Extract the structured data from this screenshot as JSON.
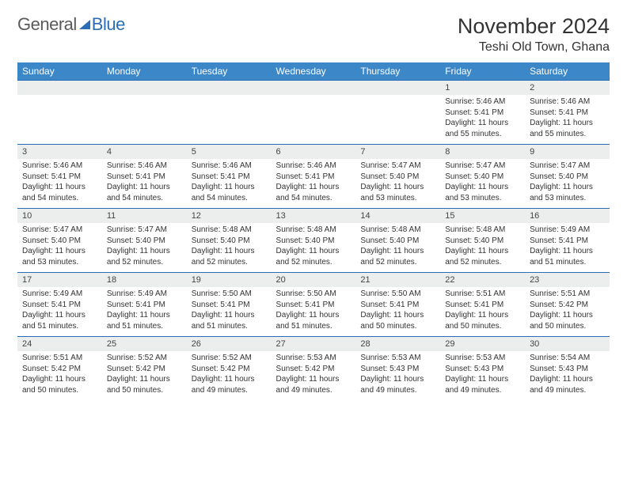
{
  "logo": {
    "text1": "General",
    "text2": "Blue"
  },
  "title": "November 2024",
  "location": "Teshi Old Town, Ghana",
  "colors": {
    "header_bg": "#3b87c8",
    "header_text": "#ffffff",
    "rule": "#2a6db5",
    "daynum_bg": "#eceded",
    "logo_gray": "#5a5a5a",
    "logo_blue": "#2a6db5",
    "text": "#333333",
    "background": "#ffffff"
  },
  "day_headers": [
    "Sunday",
    "Monday",
    "Tuesday",
    "Wednesday",
    "Thursday",
    "Friday",
    "Saturday"
  ],
  "weeks": [
    [
      {
        "n": "",
        "sr": "",
        "ss": "",
        "dl": ""
      },
      {
        "n": "",
        "sr": "",
        "ss": "",
        "dl": ""
      },
      {
        "n": "",
        "sr": "",
        "ss": "",
        "dl": ""
      },
      {
        "n": "",
        "sr": "",
        "ss": "",
        "dl": ""
      },
      {
        "n": "",
        "sr": "",
        "ss": "",
        "dl": ""
      },
      {
        "n": "1",
        "sr": "Sunrise: 5:46 AM",
        "ss": "Sunset: 5:41 PM",
        "dl": "Daylight: 11 hours and 55 minutes."
      },
      {
        "n": "2",
        "sr": "Sunrise: 5:46 AM",
        "ss": "Sunset: 5:41 PM",
        "dl": "Daylight: 11 hours and 55 minutes."
      }
    ],
    [
      {
        "n": "3",
        "sr": "Sunrise: 5:46 AM",
        "ss": "Sunset: 5:41 PM",
        "dl": "Daylight: 11 hours and 54 minutes."
      },
      {
        "n": "4",
        "sr": "Sunrise: 5:46 AM",
        "ss": "Sunset: 5:41 PM",
        "dl": "Daylight: 11 hours and 54 minutes."
      },
      {
        "n": "5",
        "sr": "Sunrise: 5:46 AM",
        "ss": "Sunset: 5:41 PM",
        "dl": "Daylight: 11 hours and 54 minutes."
      },
      {
        "n": "6",
        "sr": "Sunrise: 5:46 AM",
        "ss": "Sunset: 5:41 PM",
        "dl": "Daylight: 11 hours and 54 minutes."
      },
      {
        "n": "7",
        "sr": "Sunrise: 5:47 AM",
        "ss": "Sunset: 5:40 PM",
        "dl": "Daylight: 11 hours and 53 minutes."
      },
      {
        "n": "8",
        "sr": "Sunrise: 5:47 AM",
        "ss": "Sunset: 5:40 PM",
        "dl": "Daylight: 11 hours and 53 minutes."
      },
      {
        "n": "9",
        "sr": "Sunrise: 5:47 AM",
        "ss": "Sunset: 5:40 PM",
        "dl": "Daylight: 11 hours and 53 minutes."
      }
    ],
    [
      {
        "n": "10",
        "sr": "Sunrise: 5:47 AM",
        "ss": "Sunset: 5:40 PM",
        "dl": "Daylight: 11 hours and 53 minutes."
      },
      {
        "n": "11",
        "sr": "Sunrise: 5:47 AM",
        "ss": "Sunset: 5:40 PM",
        "dl": "Daylight: 11 hours and 52 minutes."
      },
      {
        "n": "12",
        "sr": "Sunrise: 5:48 AM",
        "ss": "Sunset: 5:40 PM",
        "dl": "Daylight: 11 hours and 52 minutes."
      },
      {
        "n": "13",
        "sr": "Sunrise: 5:48 AM",
        "ss": "Sunset: 5:40 PM",
        "dl": "Daylight: 11 hours and 52 minutes."
      },
      {
        "n": "14",
        "sr": "Sunrise: 5:48 AM",
        "ss": "Sunset: 5:40 PM",
        "dl": "Daylight: 11 hours and 52 minutes."
      },
      {
        "n": "15",
        "sr": "Sunrise: 5:48 AM",
        "ss": "Sunset: 5:40 PM",
        "dl": "Daylight: 11 hours and 52 minutes."
      },
      {
        "n": "16",
        "sr": "Sunrise: 5:49 AM",
        "ss": "Sunset: 5:41 PM",
        "dl": "Daylight: 11 hours and 51 minutes."
      }
    ],
    [
      {
        "n": "17",
        "sr": "Sunrise: 5:49 AM",
        "ss": "Sunset: 5:41 PM",
        "dl": "Daylight: 11 hours and 51 minutes."
      },
      {
        "n": "18",
        "sr": "Sunrise: 5:49 AM",
        "ss": "Sunset: 5:41 PM",
        "dl": "Daylight: 11 hours and 51 minutes."
      },
      {
        "n": "19",
        "sr": "Sunrise: 5:50 AM",
        "ss": "Sunset: 5:41 PM",
        "dl": "Daylight: 11 hours and 51 minutes."
      },
      {
        "n": "20",
        "sr": "Sunrise: 5:50 AM",
        "ss": "Sunset: 5:41 PM",
        "dl": "Daylight: 11 hours and 51 minutes."
      },
      {
        "n": "21",
        "sr": "Sunrise: 5:50 AM",
        "ss": "Sunset: 5:41 PM",
        "dl": "Daylight: 11 hours and 50 minutes."
      },
      {
        "n": "22",
        "sr": "Sunrise: 5:51 AM",
        "ss": "Sunset: 5:41 PM",
        "dl": "Daylight: 11 hours and 50 minutes."
      },
      {
        "n": "23",
        "sr": "Sunrise: 5:51 AM",
        "ss": "Sunset: 5:42 PM",
        "dl": "Daylight: 11 hours and 50 minutes."
      }
    ],
    [
      {
        "n": "24",
        "sr": "Sunrise: 5:51 AM",
        "ss": "Sunset: 5:42 PM",
        "dl": "Daylight: 11 hours and 50 minutes."
      },
      {
        "n": "25",
        "sr": "Sunrise: 5:52 AM",
        "ss": "Sunset: 5:42 PM",
        "dl": "Daylight: 11 hours and 50 minutes."
      },
      {
        "n": "26",
        "sr": "Sunrise: 5:52 AM",
        "ss": "Sunset: 5:42 PM",
        "dl": "Daylight: 11 hours and 49 minutes."
      },
      {
        "n": "27",
        "sr": "Sunrise: 5:53 AM",
        "ss": "Sunset: 5:42 PM",
        "dl": "Daylight: 11 hours and 49 minutes."
      },
      {
        "n": "28",
        "sr": "Sunrise: 5:53 AM",
        "ss": "Sunset: 5:43 PM",
        "dl": "Daylight: 11 hours and 49 minutes."
      },
      {
        "n": "29",
        "sr": "Sunrise: 5:53 AM",
        "ss": "Sunset: 5:43 PM",
        "dl": "Daylight: 11 hours and 49 minutes."
      },
      {
        "n": "30",
        "sr": "Sunrise: 5:54 AM",
        "ss": "Sunset: 5:43 PM",
        "dl": "Daylight: 11 hours and 49 minutes."
      }
    ]
  ]
}
